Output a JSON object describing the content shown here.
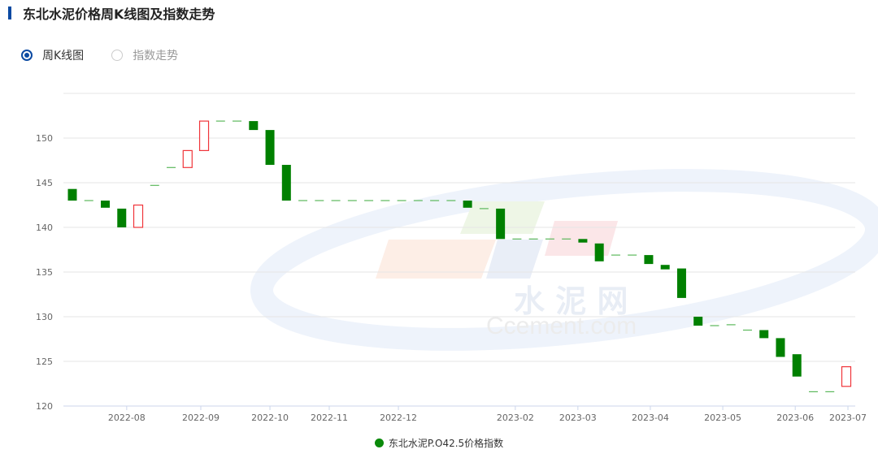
{
  "header": {
    "title": "东北水泥价格周K线图及指数走势"
  },
  "view_options": [
    {
      "label": "周K线图",
      "selected": true
    },
    {
      "label": "指数走势",
      "selected": false
    }
  ],
  "watermark": {
    "cn": "水 泥 网",
    "en": "Ccement.com"
  },
  "colors": {
    "up": "#f0353a",
    "down": "#008000",
    "flat": "#5cb85c",
    "accent": "#0b4aa2"
  },
  "chart_data": {
    "type": "candlestick",
    "title": "",
    "legend": {
      "entries": [
        "东北水泥P.O42.5价格指数"
      ],
      "placement": "bottom"
    },
    "ylim": [
      120,
      155
    ],
    "yticks": [
      120,
      125,
      130,
      135,
      140,
      145,
      150
    ],
    "grid": true,
    "xticks": [
      {
        "label": "2022-08",
        "at_index": 3.3
      },
      {
        "label": "2022-09",
        "at_index": 7.8
      },
      {
        "label": "2022-10",
        "at_index": 12.0
      },
      {
        "label": "2022-11",
        "at_index": 15.6
      },
      {
        "label": "2022-12",
        "at_index": 19.8
      },
      {
        "label": "2023-02",
        "at_index": 26.9
      },
      {
        "label": "2023-03",
        "at_index": 30.7
      },
      {
        "label": "2023-04",
        "at_index": 35.1
      },
      {
        "label": "2023-05",
        "at_index": 39.5
      },
      {
        "label": "2023-06",
        "at_index": 43.9
      },
      {
        "label": "2023-07",
        "at_index": 47.1
      }
    ],
    "candles": [
      [
        144.3,
        143.0
      ],
      [
        143.0,
        143.0
      ],
      [
        143.0,
        142.2
      ],
      [
        142.1,
        140.0
      ],
      [
        140.0,
        142.5
      ],
      [
        144.7,
        144.7
      ],
      [
        146.7,
        146.7
      ],
      [
        146.7,
        148.6
      ],
      [
        148.6,
        151.9
      ],
      [
        151.9,
        151.9
      ],
      [
        151.9,
        151.9
      ],
      [
        151.9,
        150.9
      ],
      [
        150.9,
        147.0
      ],
      [
        147.0,
        143.0
      ],
      [
        143.0,
        143.0
      ],
      [
        143.0,
        143.0
      ],
      [
        143.0,
        143.0
      ],
      [
        143.0,
        143.0
      ],
      [
        143.0,
        143.0
      ],
      [
        143.0,
        143.0
      ],
      [
        143.0,
        143.0
      ],
      [
        143.0,
        143.0
      ],
      [
        143.0,
        143.0
      ],
      [
        143.0,
        143.0
      ],
      [
        143.0,
        142.2
      ],
      [
        142.1,
        142.1
      ],
      [
        142.1,
        138.7
      ],
      [
        138.7,
        138.7
      ],
      [
        138.7,
        138.7
      ],
      [
        138.7,
        138.7
      ],
      [
        138.7,
        138.7
      ],
      [
        138.7,
        138.3
      ],
      [
        138.2,
        136.2
      ],
      [
        136.9,
        136.9
      ],
      [
        136.9,
        136.9
      ],
      [
        136.9,
        135.9
      ],
      [
        135.8,
        135.3
      ],
      [
        135.4,
        132.1
      ],
      [
        130.0,
        129.0
      ],
      [
        129.0,
        129.0
      ],
      [
        129.1,
        129.1
      ],
      [
        128.5,
        128.5
      ],
      [
        128.5,
        127.6
      ],
      [
        127.6,
        125.5
      ],
      [
        125.8,
        123.3
      ],
      [
        121.6,
        121.6
      ],
      [
        121.6,
        121.6
      ],
      [
        122.2,
        124.4
      ]
    ]
  }
}
